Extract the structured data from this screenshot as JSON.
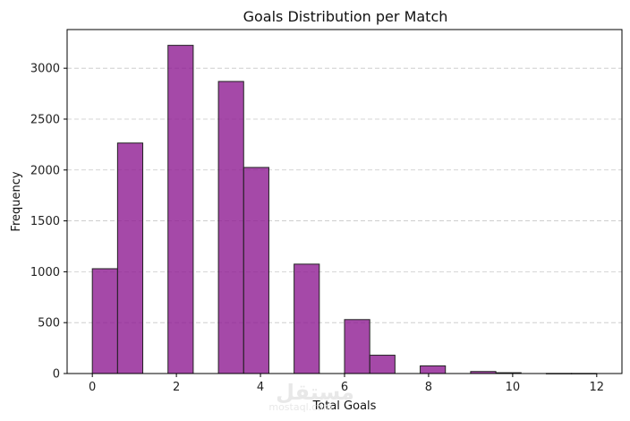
{
  "chart_data": {
    "type": "bar",
    "title": "Goals Distribution per Match",
    "xlabel": "Total Goals",
    "ylabel": "Frequency",
    "xlim": [
      -0.6,
      12.6
    ],
    "ylim": [
      0,
      3380
    ],
    "xticks": [
      0,
      2,
      4,
      6,
      8,
      10,
      12
    ],
    "yticks": [
      0,
      500,
      1000,
      1500,
      2000,
      2500,
      3000
    ],
    "bin_width": 0.6,
    "bins": [
      {
        "x": 0.0,
        "value": 1030
      },
      {
        "x": 0.6,
        "value": 2265
      },
      {
        "x": 1.8,
        "value": 3225
      },
      {
        "x": 3.0,
        "value": 2870
      },
      {
        "x": 3.6,
        "value": 2025
      },
      {
        "x": 4.8,
        "value": 1075
      },
      {
        "x": 6.0,
        "value": 530
      },
      {
        "x": 6.6,
        "value": 180
      },
      {
        "x": 7.8,
        "value": 75
      },
      {
        "x": 9.0,
        "value": 20
      },
      {
        "x": 9.6,
        "value": 8
      },
      {
        "x": 10.8,
        "value": 1
      },
      {
        "x": 11.4,
        "value": 1
      }
    ],
    "grid": {
      "y": true,
      "x": false,
      "style": "dashed"
    },
    "bar_color": "#8e1c92",
    "bar_edge_color": "#222222"
  },
  "watermark": {
    "arabic": "مستقل",
    "latin": "mostaql.com"
  }
}
